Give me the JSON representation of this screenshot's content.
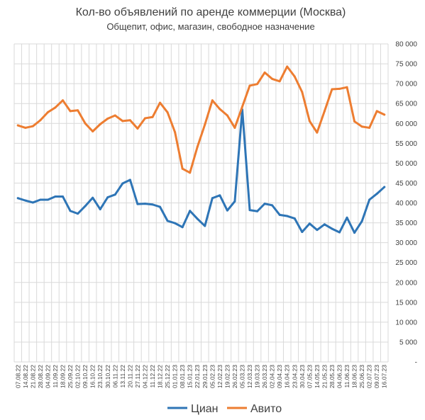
{
  "chart_data": {
    "type": "line",
    "title": "Кол-во объявлений по аренде коммерции (Москва)",
    "subtitle": "Общепит, офис, магазин, свободное назначение",
    "xlabel": "",
    "ylabel": "",
    "ylim": [
      0,
      80000
    ],
    "y_ticks": [
      0,
      5000,
      10000,
      15000,
      20000,
      25000,
      30000,
      35000,
      40000,
      45000,
      50000,
      55000,
      60000,
      65000,
      70000,
      75000,
      80000
    ],
    "y_tick_labels": [
      "-",
      "5 000",
      "10 000",
      "15 000",
      "20 000",
      "25 000",
      "30 000",
      "35 000",
      "40 000",
      "45 000",
      "50 000",
      "55 000",
      "60 000",
      "65 000",
      "70 000",
      "75 000",
      "80 000"
    ],
    "y_axis_position": "right",
    "grid": true,
    "legend_position": "bottom",
    "categories": [
      "07.08.22",
      "14.08.22",
      "21.08.22",
      "28.08.22",
      "04.09.22",
      "11.09.22",
      "18.09.22",
      "25.09.22",
      "02.10.22",
      "09.10.22",
      "16.10.22",
      "23.10.22",
      "30.10.22",
      "06.11.22",
      "13.11.22",
      "20.11.22",
      "27.11.22",
      "04.12.22",
      "11.12.22",
      "18.12.22",
      "25.12.22",
      "01.01.23",
      "08.01.23",
      "15.01.23",
      "22.01.23",
      "29.01.23",
      "05.02.23",
      "12.02.23",
      "19.02.23",
      "26.02.23",
      "05.03.23",
      "12.03.23",
      "19.03.23",
      "26.03.23",
      "02.04.23",
      "09.04.23",
      "16.04.23",
      "23.04.23",
      "30.04.23",
      "07.05.23",
      "14.05.23",
      "21.05.23",
      "28.05.23",
      "04.06.23",
      "11.06.23",
      "18.06.23",
      "25.06.23",
      "02.07.23",
      "09.07.23",
      "16.07.23"
    ],
    "series": [
      {
        "name": "Циан",
        "color": "#2E75B6",
        "values": [
          41200,
          40600,
          40100,
          40800,
          40800,
          41600,
          41600,
          38000,
          37300,
          39200,
          41300,
          38400,
          41400,
          42100,
          44900,
          45800,
          39700,
          39800,
          39600,
          39000,
          35500,
          34900,
          33900,
          38000,
          36000,
          34200,
          41200,
          41900,
          38100,
          40400,
          63500,
          38200,
          37900,
          39800,
          39400,
          37000,
          36700,
          36100,
          32700,
          34800,
          33200,
          34600,
          33500,
          32600,
          36300,
          32500,
          35400,
          40800,
          42300,
          44000
        ]
      },
      {
        "name": "Авито",
        "color": "#ED7D31",
        "values": [
          59500,
          58900,
          59300,
          60800,
          62800,
          64000,
          65800,
          63100,
          63300,
          60000,
          58000,
          59800,
          61200,
          62000,
          60600,
          60800,
          58700,
          61300,
          61600,
          65200,
          62800,
          57800,
          48600,
          47600,
          54100,
          59700,
          65800,
          63600,
          62000,
          58900,
          64200,
          69500,
          69900,
          72800,
          71200,
          70600,
          74300,
          71800,
          67900,
          60600,
          57700,
          63100,
          68600,
          68700,
          69100,
          60500,
          59200,
          58900,
          63100,
          62200
        ]
      }
    ]
  }
}
